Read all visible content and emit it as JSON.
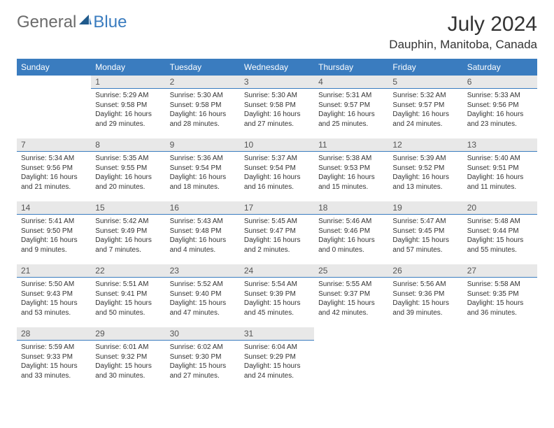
{
  "brand": {
    "text1": "General",
    "text2": "Blue",
    "color_general": "#6b6b6b",
    "color_blue": "#3a7cbf"
  },
  "title": "July 2024",
  "location": "Dauphin, Manitoba, Canada",
  "weekdays": [
    "Sunday",
    "Monday",
    "Tuesday",
    "Wednesday",
    "Thursday",
    "Friday",
    "Saturday"
  ],
  "colors": {
    "header_bg": "#3a7cbf",
    "header_text": "#ffffff",
    "daynum_bg": "#e8e8e8",
    "daynum_border": "#3a7cbf",
    "body_text": "#333333"
  },
  "first_weekday_index": 1,
  "days": [
    {
      "n": 1,
      "sunrise": "5:29 AM",
      "sunset": "9:58 PM",
      "daylight": "16 hours and 29 minutes."
    },
    {
      "n": 2,
      "sunrise": "5:30 AM",
      "sunset": "9:58 PM",
      "daylight": "16 hours and 28 minutes."
    },
    {
      "n": 3,
      "sunrise": "5:30 AM",
      "sunset": "9:58 PM",
      "daylight": "16 hours and 27 minutes."
    },
    {
      "n": 4,
      "sunrise": "5:31 AM",
      "sunset": "9:57 PM",
      "daylight": "16 hours and 25 minutes."
    },
    {
      "n": 5,
      "sunrise": "5:32 AM",
      "sunset": "9:57 PM",
      "daylight": "16 hours and 24 minutes."
    },
    {
      "n": 6,
      "sunrise": "5:33 AM",
      "sunset": "9:56 PM",
      "daylight": "16 hours and 23 minutes."
    },
    {
      "n": 7,
      "sunrise": "5:34 AM",
      "sunset": "9:56 PM",
      "daylight": "16 hours and 21 minutes."
    },
    {
      "n": 8,
      "sunrise": "5:35 AM",
      "sunset": "9:55 PM",
      "daylight": "16 hours and 20 minutes."
    },
    {
      "n": 9,
      "sunrise": "5:36 AM",
      "sunset": "9:54 PM",
      "daylight": "16 hours and 18 minutes."
    },
    {
      "n": 10,
      "sunrise": "5:37 AM",
      "sunset": "9:54 PM",
      "daylight": "16 hours and 16 minutes."
    },
    {
      "n": 11,
      "sunrise": "5:38 AM",
      "sunset": "9:53 PM",
      "daylight": "16 hours and 15 minutes."
    },
    {
      "n": 12,
      "sunrise": "5:39 AM",
      "sunset": "9:52 PM",
      "daylight": "16 hours and 13 minutes."
    },
    {
      "n": 13,
      "sunrise": "5:40 AM",
      "sunset": "9:51 PM",
      "daylight": "16 hours and 11 minutes."
    },
    {
      "n": 14,
      "sunrise": "5:41 AM",
      "sunset": "9:50 PM",
      "daylight": "16 hours and 9 minutes."
    },
    {
      "n": 15,
      "sunrise": "5:42 AM",
      "sunset": "9:49 PM",
      "daylight": "16 hours and 7 minutes."
    },
    {
      "n": 16,
      "sunrise": "5:43 AM",
      "sunset": "9:48 PM",
      "daylight": "16 hours and 4 minutes."
    },
    {
      "n": 17,
      "sunrise": "5:45 AM",
      "sunset": "9:47 PM",
      "daylight": "16 hours and 2 minutes."
    },
    {
      "n": 18,
      "sunrise": "5:46 AM",
      "sunset": "9:46 PM",
      "daylight": "16 hours and 0 minutes."
    },
    {
      "n": 19,
      "sunrise": "5:47 AM",
      "sunset": "9:45 PM",
      "daylight": "15 hours and 57 minutes."
    },
    {
      "n": 20,
      "sunrise": "5:48 AM",
      "sunset": "9:44 PM",
      "daylight": "15 hours and 55 minutes."
    },
    {
      "n": 21,
      "sunrise": "5:50 AM",
      "sunset": "9:43 PM",
      "daylight": "15 hours and 53 minutes."
    },
    {
      "n": 22,
      "sunrise": "5:51 AM",
      "sunset": "9:41 PM",
      "daylight": "15 hours and 50 minutes."
    },
    {
      "n": 23,
      "sunrise": "5:52 AM",
      "sunset": "9:40 PM",
      "daylight": "15 hours and 47 minutes."
    },
    {
      "n": 24,
      "sunrise": "5:54 AM",
      "sunset": "9:39 PM",
      "daylight": "15 hours and 45 minutes."
    },
    {
      "n": 25,
      "sunrise": "5:55 AM",
      "sunset": "9:37 PM",
      "daylight": "15 hours and 42 minutes."
    },
    {
      "n": 26,
      "sunrise": "5:56 AM",
      "sunset": "9:36 PM",
      "daylight": "15 hours and 39 minutes."
    },
    {
      "n": 27,
      "sunrise": "5:58 AM",
      "sunset": "9:35 PM",
      "daylight": "15 hours and 36 minutes."
    },
    {
      "n": 28,
      "sunrise": "5:59 AM",
      "sunset": "9:33 PM",
      "daylight": "15 hours and 33 minutes."
    },
    {
      "n": 29,
      "sunrise": "6:01 AM",
      "sunset": "9:32 PM",
      "daylight": "15 hours and 30 minutes."
    },
    {
      "n": 30,
      "sunrise": "6:02 AM",
      "sunset": "9:30 PM",
      "daylight": "15 hours and 27 minutes."
    },
    {
      "n": 31,
      "sunrise": "6:04 AM",
      "sunset": "9:29 PM",
      "daylight": "15 hours and 24 minutes."
    }
  ],
  "labels": {
    "sunrise": "Sunrise:",
    "sunset": "Sunset:",
    "daylight": "Daylight:"
  }
}
